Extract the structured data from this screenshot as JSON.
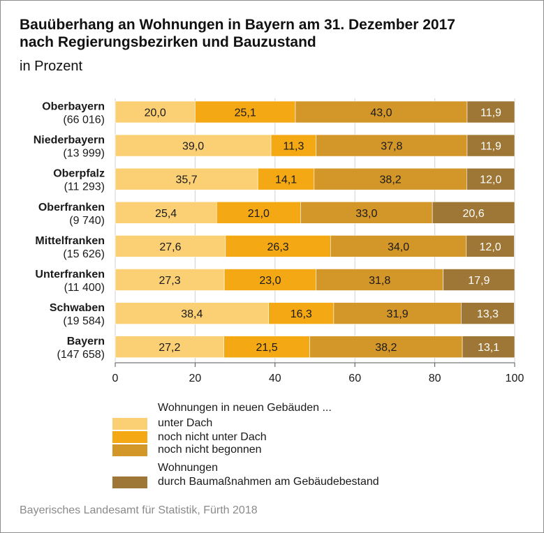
{
  "header": {
    "title_line1": "Bauüberhang an Wohnungen in Bayern am 31. Dezember 2017",
    "title_line2": "nach Regierungsbezirken und Bauzustand",
    "subtitle": "in Prozent"
  },
  "chart_data": {
    "type": "bar",
    "orientation": "horizontal",
    "stacked": true,
    "title": "Bauüberhang an Wohnungen in Bayern am 31. Dezember 2017 nach Regierungsbezirken und Bauzustand",
    "subtitle": "in Prozent",
    "categories": [
      "Oberbayern",
      "Niederbayern",
      "Oberpfalz",
      "Oberfranken",
      "Mittelfranken",
      "Unterfranken",
      "Schwaben",
      "Bayern"
    ],
    "category_counts": [
      "(66 016)",
      "(13 999)",
      "(11 293)",
      "(9 740)",
      "(15 626)",
      "(11 400)",
      "(19 584)",
      "(147 658)"
    ],
    "series": [
      {
        "name": "unter Dach",
        "color": "#fbd074",
        "values": [
          20.0,
          39.0,
          35.7,
          25.4,
          27.6,
          27.3,
          38.4,
          27.2
        ],
        "labels": [
          "20,0",
          "39,0",
          "35,7",
          "25,4",
          "27,6",
          "27,3",
          "38,4",
          "27,2"
        ],
        "label_color": "#1a1a1a"
      },
      {
        "name": "noch nicht unter Dach",
        "color": "#f4a814",
        "values": [
          25.1,
          11.3,
          14.1,
          21.0,
          26.3,
          23.0,
          16.3,
          21.5
        ],
        "labels": [
          "25,1",
          "11,3",
          "14,1",
          "21,0",
          "26,3",
          "23,0",
          "16,3",
          "21,5"
        ],
        "label_color": "#1a1a1a"
      },
      {
        "name": "noch nicht begonnen",
        "color": "#d39628",
        "values": [
          43.0,
          37.8,
          38.2,
          33.0,
          34.0,
          31.8,
          31.9,
          38.2
        ],
        "labels": [
          "43,0",
          "37,8",
          "38,2",
          "33,0",
          "34,0",
          "31,8",
          "31,9",
          "38,2"
        ],
        "label_color": "#1a1a1a"
      },
      {
        "name": "durch Baumaßnahmen am Gebäudebestand",
        "color": "#9e7635",
        "values": [
          11.9,
          11.9,
          12.0,
          20.6,
          12.0,
          17.9,
          13.3,
          13.1
        ],
        "labels": [
          "11,9",
          "11,9",
          "12,0",
          "20,6",
          "12,0",
          "17,9",
          "13,3",
          "13,1"
        ],
        "label_color": "#ffffff"
      }
    ],
    "xlim": [
      0,
      100
    ],
    "xticks": [
      0,
      20,
      40,
      60,
      80,
      100
    ],
    "xtick_labels": [
      "0",
      "20",
      "40",
      "60",
      "80",
      "100"
    ],
    "grid": true
  },
  "legend": {
    "group1_title": "Wohnungen in neuen Gebäuden ...",
    "items": [
      {
        "label": "unter Dach",
        "color": "#fbd074"
      },
      {
        "label": "noch nicht unter Dach",
        "color": "#f4a814"
      },
      {
        "label": "noch nicht begonnen",
        "color": "#d39628"
      }
    ],
    "group2_title": "Wohnungen",
    "item4": {
      "label": "durch Baumaßnahmen am Gebäudebestand",
      "color": "#9e7635"
    }
  },
  "footer": {
    "source": "Bayerisches Landesamt für Statistik, Fürth 2018"
  }
}
